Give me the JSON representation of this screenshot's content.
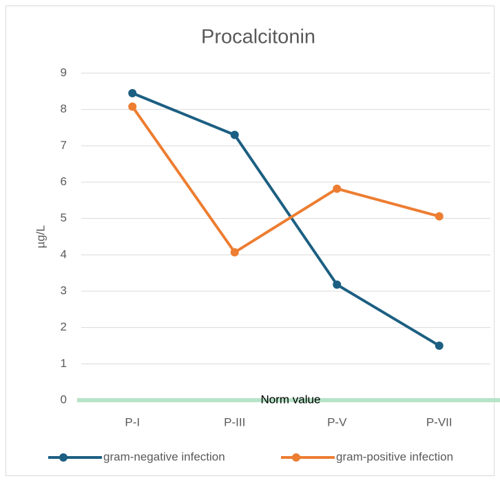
{
  "chart_data": {
    "type": "line",
    "title": "Procalcitonin",
    "y_label": "µg/L",
    "annotation": "Norm value",
    "categories": [
      "P-I",
      "P-III",
      "P-V",
      "P-VII"
    ],
    "series": [
      {
        "name": "gram-negative infection",
        "color": "#1c5f82",
        "values": [
          8.45,
          7.3,
          3.18,
          1.5
        ]
      },
      {
        "name": "gram-positive infection",
        "color": "#ed7d31",
        "values": [
          8.08,
          4.07,
          5.82,
          5.06
        ]
      }
    ],
    "ylim": [
      0,
      9
    ],
    "yticks": [
      0,
      1,
      2,
      3,
      4,
      5,
      6,
      7,
      8,
      9
    ],
    "grid": true,
    "legend": "bottom"
  }
}
